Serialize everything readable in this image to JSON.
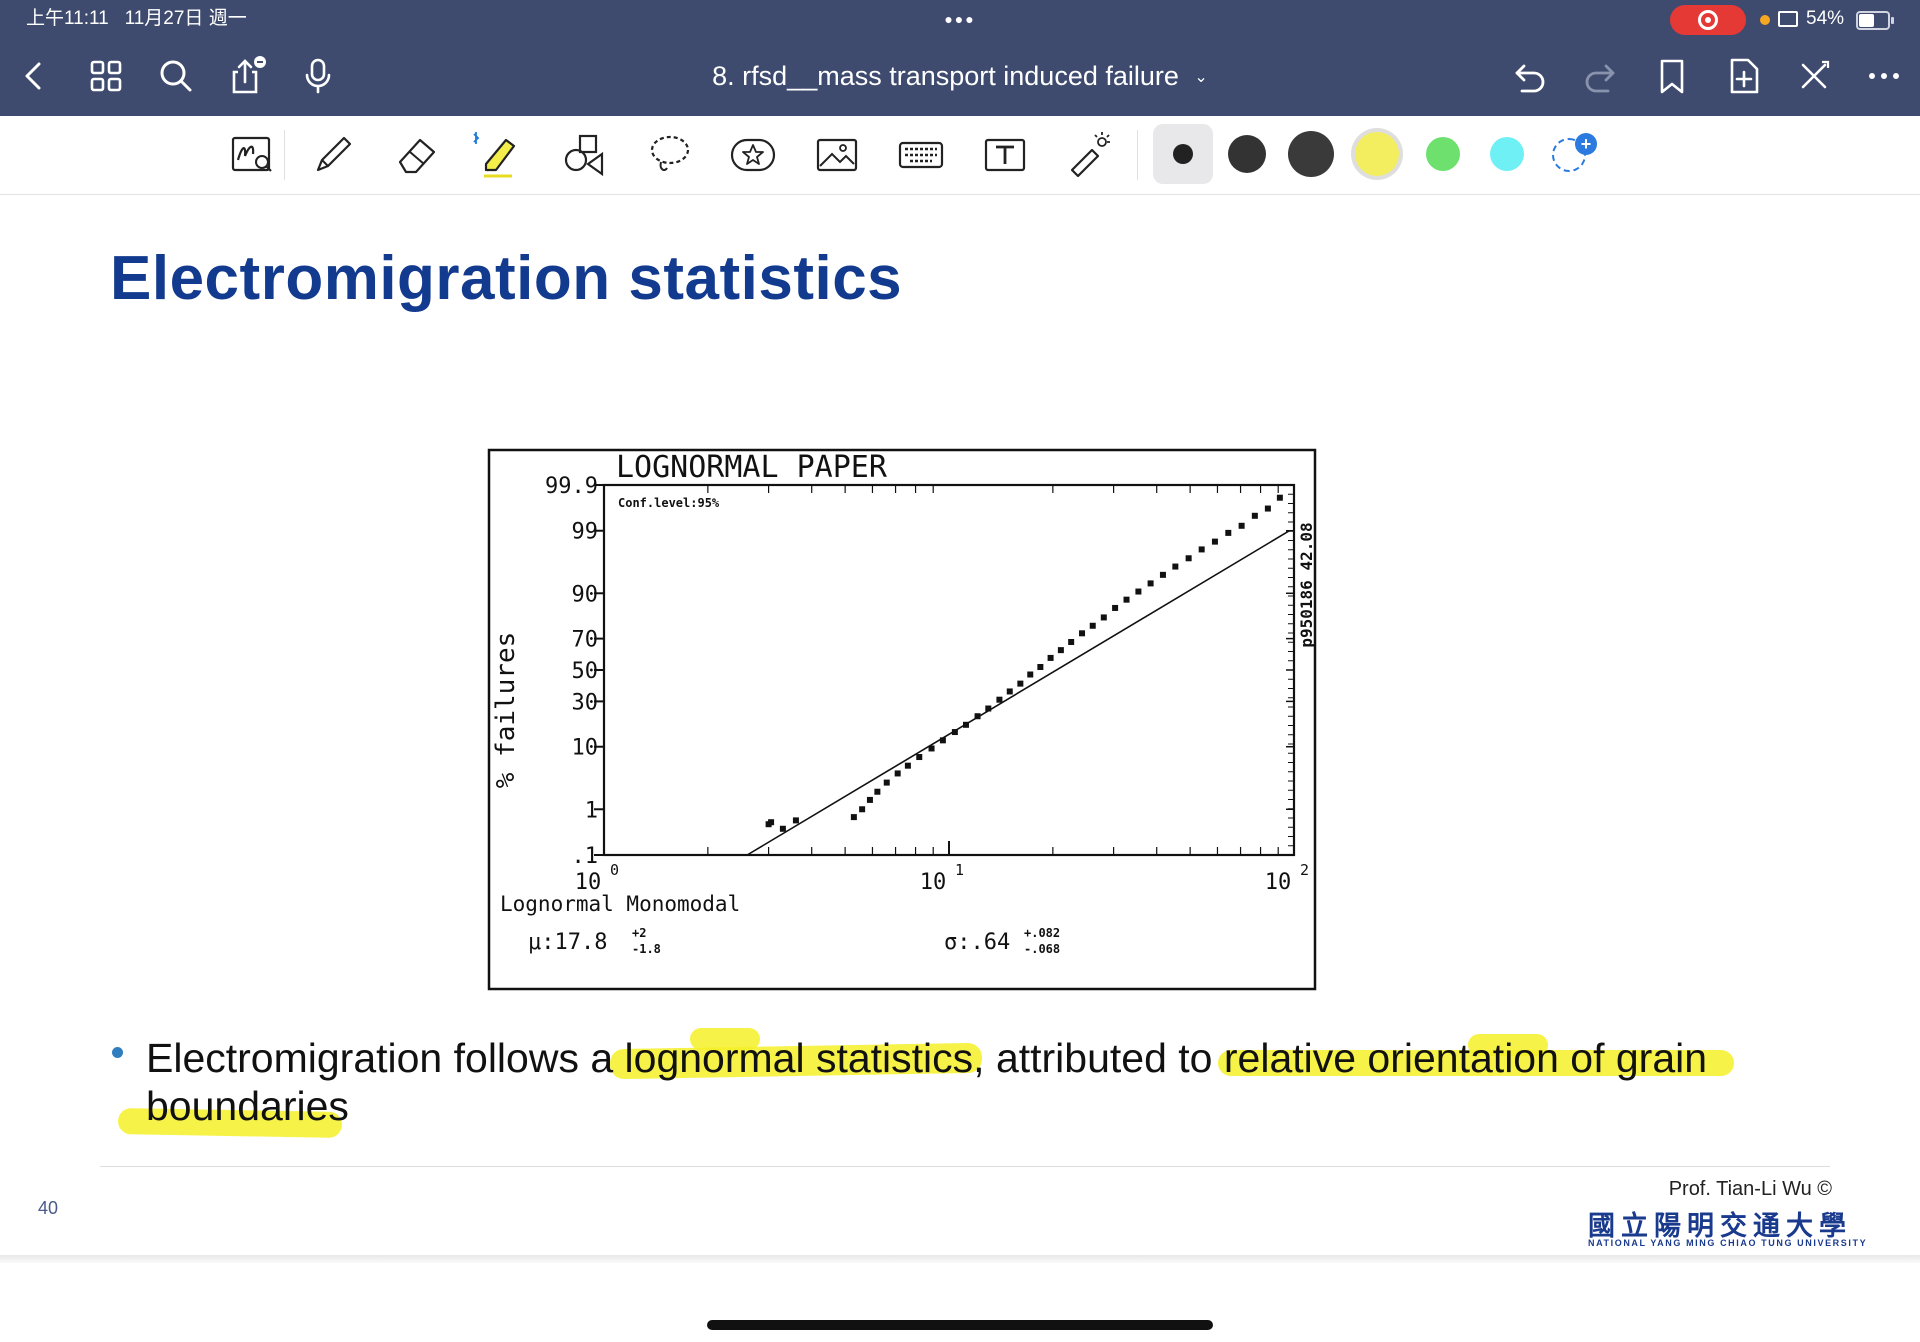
{
  "status_bar": {
    "time": "上午11:11",
    "date": "11月27日 週一",
    "battery": "54%"
  },
  "nav": {
    "doc_title": "8. rfsd__mass transport induced failure",
    "chevron": "chevron-down-icon"
  },
  "toolbar": {
    "colors": [
      "#222222",
      "#333333",
      "#3a3a3a",
      "#f2ee60",
      "#6ee06e",
      "#6ff0f5"
    ]
  },
  "slide": {
    "title": "Electromigration statistics",
    "bullet_parts": {
      "p1": "Electromigration follows a ",
      "p2": "lognormal statistics",
      "p3": ", attributed to ",
      "p4": "relative orientation of grain",
      "p5": "boundaries"
    },
    "page_number": "40",
    "credit": "Prof. Tian-Li Wu ©",
    "university_zh": "國立陽明交通大學",
    "university_en": "NATIONAL YANG MING CHIAO TUNG UNIVERSITY"
  },
  "chart_data": {
    "type": "scatter",
    "title": "LOGNORMAL PAPER",
    "annotation": "Conf.level:95%",
    "side_label": "p950186 42.08",
    "ylabel": "% failures",
    "xlabel": "",
    "x_scale": "log",
    "y_scale": "probability",
    "xlim": [
      1,
      100
    ],
    "ylim": [
      0.1,
      99.9
    ],
    "y_ticks": [
      "99.9",
      "99",
      "90",
      "70",
      "50",
      "30",
      "10",
      "1",
      ".1"
    ],
    "x_ticks": [
      {
        "base": "10",
        "exp": "0"
      },
      {
        "base": "10",
        "exp": "1"
      },
      {
        "base": "10",
        "exp": "2"
      }
    ],
    "legend": {
      "dist": "Lognormal Monomodal",
      "mu_label": "μ:17.8",
      "mu_up": "+2",
      "mu_down": "-1.8",
      "sigma_label": "σ:.64",
      "sigma_up": "+.082",
      "sigma_down": "-.068"
    },
    "fit_line": {
      "x": [
        2.6,
        97
      ],
      "y": [
        0.1,
        99
      ]
    },
    "points": [
      [
        3.0,
        0.5
      ],
      [
        3.05,
        0.55
      ],
      [
        3.3,
        0.4
      ],
      [
        3.6,
        0.6
      ],
      [
        5.3,
        0.7
      ],
      [
        5.6,
        1.0
      ],
      [
        5.9,
        1.5
      ],
      [
        6.2,
        2.1
      ],
      [
        6.6,
        3.0
      ],
      [
        7.1,
        4.2
      ],
      [
        7.6,
        5.5
      ],
      [
        8.2,
        7.3
      ],
      [
        8.9,
        9.5
      ],
      [
        9.6,
        12
      ],
      [
        10.4,
        15
      ],
      [
        11.2,
        18
      ],
      [
        12.1,
        22
      ],
      [
        13.0,
        26
      ],
      [
        14.0,
        31
      ],
      [
        15.0,
        36
      ],
      [
        16.1,
        41
      ],
      [
        17.2,
        47
      ],
      [
        18.4,
        52
      ],
      [
        19.7,
        58
      ],
      [
        21.1,
        63
      ],
      [
        22.6,
        68
      ],
      [
        24.3,
        73
      ],
      [
        26.1,
        77
      ],
      [
        28.1,
        81
      ],
      [
        30.3,
        85
      ],
      [
        32.7,
        88
      ],
      [
        35.4,
        90.5
      ],
      [
        38.4,
        92.6
      ],
      [
        41.7,
        94.4
      ],
      [
        45.3,
        95.8
      ],
      [
        49.5,
        96.9
      ],
      [
        54.0,
        97.8
      ],
      [
        59.0,
        98.4
      ],
      [
        64.5,
        98.9
      ],
      [
        70.5,
        99.2
      ],
      [
        77.0,
        99.5
      ],
      [
        84.0,
        99.65
      ],
      [
        91.0,
        99.8
      ]
    ]
  }
}
